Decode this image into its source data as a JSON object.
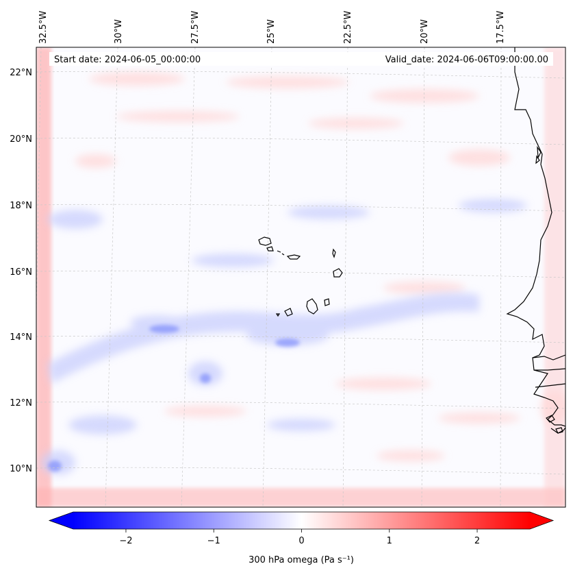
{
  "map": {
    "start_date_label": "Start date: 2024-06-05_00:00:00",
    "valid_date_label": "Valid_date: 2024-06-06T09:00:00.00",
    "lon_ticks": [
      "32.5°W",
      "30°W",
      "27.5°W",
      "25°W",
      "22.5°W",
      "20°W",
      "17.5°W"
    ],
    "lat_ticks": [
      "22°N",
      "20°N",
      "18°N",
      "16°N",
      "14°N",
      "12°N",
      "10°N"
    ],
    "field": "300 hPa omega",
    "colors": {
      "negative": "#0000ff",
      "zero": "#ffffff",
      "positive": "#ff0000",
      "coast": "#000000",
      "grid": "#bbbbbb"
    }
  },
  "colorbar": {
    "label": "300 hPa omega (Pa s⁻¹)",
    "ticks": [
      "−2",
      "−1",
      "0",
      "1",
      "2"
    ],
    "tick_values": [
      -2,
      -1,
      0,
      1,
      2
    ],
    "vmin": -2.6,
    "vmax": 2.6,
    "extend": "both"
  }
}
